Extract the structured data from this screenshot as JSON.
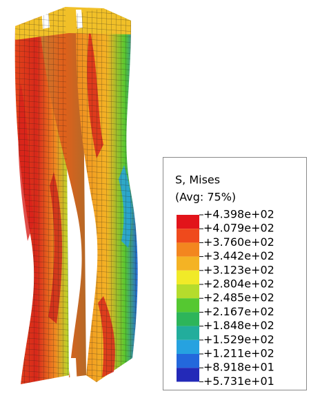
{
  "legend": {
    "title": "S, Mises",
    "subtitle": "(Avg: 75%)",
    "labels": [
      "+4.398e+02",
      "+4.079e+02",
      "+3.760e+02",
      "+3.442e+02",
      "+3.123e+02",
      "+2.804e+02",
      "+2.485e+02",
      "+2.167e+02",
      "+1.848e+02",
      "+1.529e+02",
      "+1.211e+02",
      "+8.918e+01",
      "+5.731e+01"
    ],
    "colors": [
      "#e2141a",
      "#ef4a1c",
      "#f3861f",
      "#f4b324",
      "#f1ea28",
      "#b5dc2c",
      "#55c831",
      "#2db55a",
      "#22ad9c",
      "#26a2e0",
      "#2368dc",
      "#2329b8"
    ]
  }
}
